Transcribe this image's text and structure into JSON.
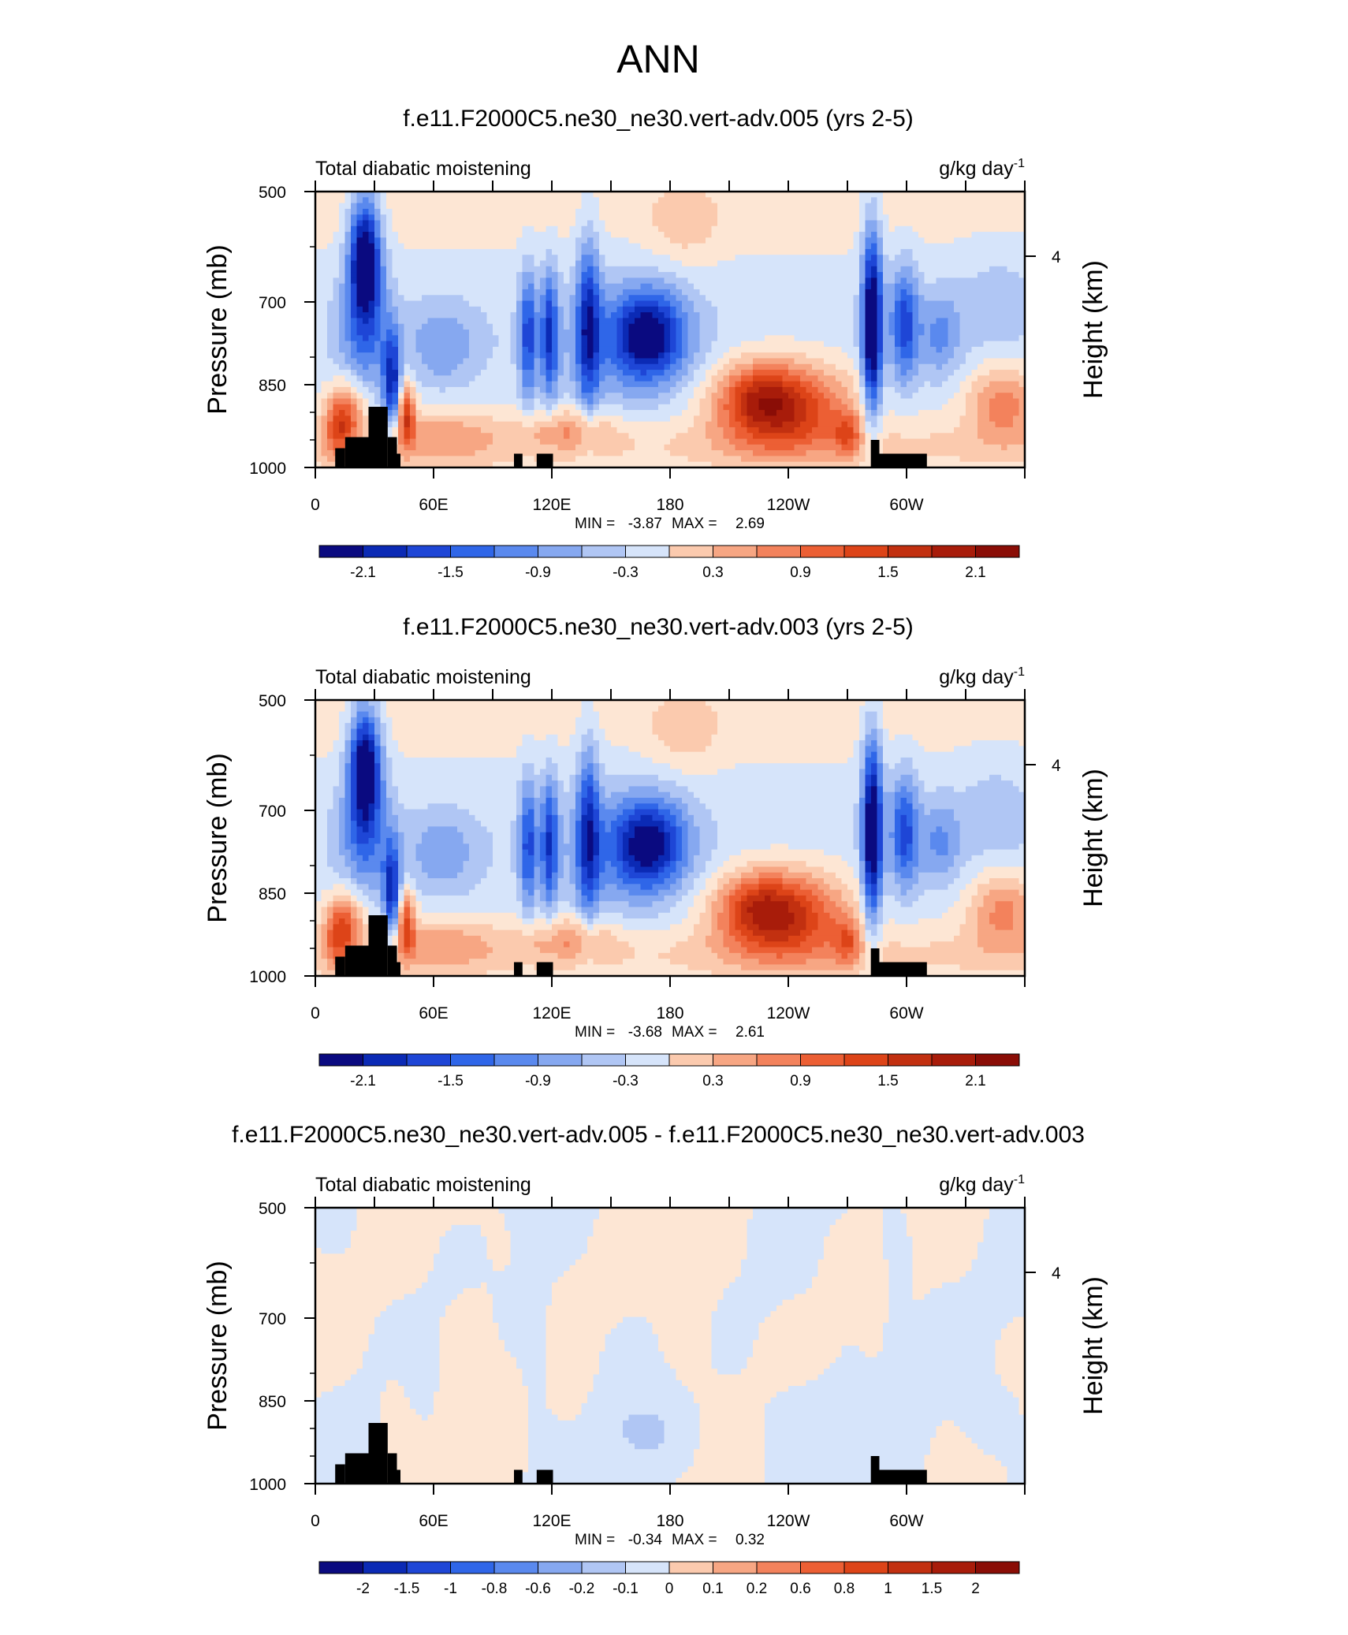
{
  "figure_title": "ANN",
  "chart_data": [
    {
      "type": "heatmap",
      "title": "f.e11.F2000C5.ne30_ne30.vert-adv.005 (yrs 2-5)",
      "left_label": "Total diabatic moistening",
      "units": "g/kg day",
      "units_exponent": "-1",
      "ylabel": "Pressure (mb)",
      "ylabel_right": "Height (km)",
      "y_ticks": [
        "500",
        "700",
        "850",
        "1000"
      ],
      "y_right_ticks": [
        "4"
      ],
      "x_ticks": [
        "0",
        "60E",
        "120E",
        "180",
        "120W",
        "60W"
      ],
      "min_label": "MIN =",
      "min_value": "-3.87",
      "max_label": "MAX =",
      "max_value": "2.69",
      "colorbar_labels": [
        "-2.1",
        "-1.5",
        "-0.9",
        "-0.3",
        "0.3",
        "0.9",
        "1.5",
        "2.1"
      ],
      "levels": [
        -2.4,
        -2.1,
        -1.8,
        -1.5,
        -1.2,
        -0.9,
        -0.6,
        -0.3,
        0,
        0.3,
        0.6,
        0.9,
        1.2,
        1.5,
        1.8,
        2.1,
        2.4
      ]
    },
    {
      "type": "heatmap",
      "title": "f.e11.F2000C5.ne30_ne30.vert-adv.003 (yrs 2-5)",
      "left_label": "Total diabatic moistening",
      "units": "g/kg day",
      "units_exponent": "-1",
      "ylabel": "Pressure (mb)",
      "ylabel_right": "Height (km)",
      "y_ticks": [
        "500",
        "700",
        "850",
        "1000"
      ],
      "y_right_ticks": [
        "4"
      ],
      "x_ticks": [
        "0",
        "60E",
        "120E",
        "180",
        "120W",
        "60W"
      ],
      "min_label": "MIN =",
      "min_value": "-3.68",
      "max_label": "MAX =",
      "max_value": "2.61",
      "colorbar_labels": [
        "-2.1",
        "-1.5",
        "-0.9",
        "-0.3",
        "0.3",
        "0.9",
        "1.5",
        "2.1"
      ],
      "levels": [
        -2.4,
        -2.1,
        -1.8,
        -1.5,
        -1.2,
        -0.9,
        -0.6,
        -0.3,
        0,
        0.3,
        0.6,
        0.9,
        1.2,
        1.5,
        1.8,
        2.1,
        2.4
      ]
    },
    {
      "type": "heatmap",
      "title": "f.e11.F2000C5.ne30_ne30.vert-adv.005 - f.e11.F2000C5.ne30_ne30.vert-adv.003",
      "left_label": "Total diabatic moistening",
      "units": "g/kg day",
      "units_exponent": "-1",
      "ylabel": "Pressure (mb)",
      "ylabel_right": "Height (km)",
      "y_ticks": [
        "500",
        "700",
        "850",
        "1000"
      ],
      "y_right_ticks": [
        "4"
      ],
      "x_ticks": [
        "0",
        "60E",
        "120E",
        "180",
        "120W",
        "60W"
      ],
      "min_label": "MIN =",
      "min_value": "-0.34",
      "max_label": "MAX =",
      "max_value": "0.32",
      "colorbar_labels": [
        "-2",
        "-1.5",
        "-1",
        "-0.8",
        "-0.6",
        "-0.2",
        "-0.1",
        "0",
        "0.1",
        "0.2",
        "0.6",
        "0.8",
        "1",
        "1.5",
        "2"
      ],
      "levels": [
        -2.5,
        -2,
        -1.5,
        -1,
        -0.8,
        -0.6,
        -0.2,
        -0.1,
        0,
        0.1,
        0.2,
        0.6,
        0.8,
        1,
        1.5,
        2,
        2.5
      ]
    }
  ],
  "palette": [
    "#0a0a80",
    "#0b2ab5",
    "#1e46d6",
    "#2f66e8",
    "#5a89ee",
    "#86a8f0",
    "#b0c6f4",
    "#d6e4fa",
    "#fde6d4",
    "#fbcaae",
    "#f7a683",
    "#f3825c",
    "#ec5f34",
    "#dd4418",
    "#c23010",
    "#a81c0a",
    "#8a0d06"
  ]
}
